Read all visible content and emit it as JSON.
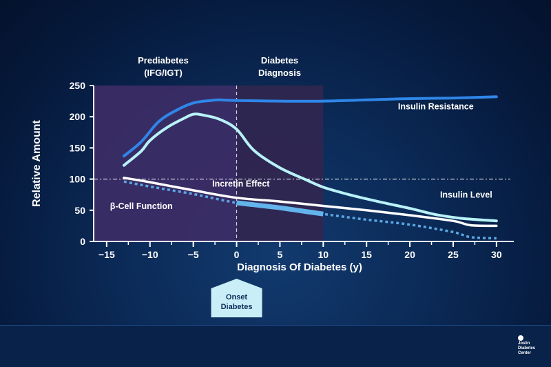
{
  "chart_data": {
    "type": "line",
    "xlabel": "Diagnosis Of Diabetes (y)",
    "ylabel": "Relative Amount",
    "xlim": [
      -16.5,
      32
    ],
    "ylim": [
      0,
      250
    ],
    "x_ticks": [
      -15,
      -10,
      -5,
      0,
      5,
      10,
      15,
      20,
      25,
      30
    ],
    "x_tick_labels": [
      "−15",
      "−10",
      "−5",
      "0",
      "5",
      "10",
      "15",
      "20",
      "25",
      "30"
    ],
    "y_ticks": [
      0,
      50,
      100,
      150,
      200,
      250
    ],
    "y_tick_labels": [
      "0",
      "50",
      "100",
      "150",
      "200",
      "250"
    ],
    "reference_line_y": 100,
    "diagnosis_line_x": 0,
    "regions": [
      {
        "label_lines": [
          "Prediabetes",
          "(IFG/IGT)"
        ],
        "x": [
          -16.5,
          0
        ],
        "color": "#3d2c66"
      },
      {
        "label_lines": [
          "Diabetes",
          "Diagnosis"
        ],
        "x": [
          0,
          10
        ],
        "color": "#31264f"
      }
    ],
    "series": [
      {
        "name": "Insulin Resistance",
        "color": "#2f86e8",
        "style": "solid",
        "x": [
          -13,
          -11,
          -9,
          -7,
          -5,
          -3,
          -2,
          0,
          5,
          10,
          15,
          20,
          25,
          30
        ],
        "y": [
          137,
          160,
          192,
          210,
          222,
          226,
          227,
          226,
          225,
          225,
          227,
          229,
          230,
          232
        ]
      },
      {
        "name": "Incretin Effect",
        "color": "#b8f2f8",
        "style": "solid",
        "x": [
          -13,
          -11,
          -10,
          -8,
          -6,
          -5,
          -4,
          -2,
          0,
          2,
          5,
          8,
          10,
          13,
          16,
          20,
          23,
          26,
          30
        ],
        "y": [
          122,
          145,
          162,
          183,
          198,
          204,
          203,
          196,
          180,
          146,
          118,
          99,
          87,
          75,
          65,
          53,
          43,
          37,
          33
        ]
      },
      {
        "name": "Insulin Level",
        "color": "#ffffff",
        "style": "solid",
        "x": [
          -13,
          -10,
          -5,
          0,
          5,
          10,
          15,
          20,
          25,
          27,
          30
        ],
        "y": [
          102,
          95,
          82,
          70,
          64,
          57,
          50,
          42,
          33,
          26,
          25
        ]
      },
      {
        "name": "β-Cell Function",
        "color": "#5aa7e2",
        "style": "dotted",
        "x": [
          -13,
          -10,
          -5,
          0,
          5,
          10,
          15,
          20,
          25,
          27,
          30
        ],
        "y": [
          96,
          88,
          76,
          62,
          54,
          44,
          35,
          27,
          15,
          7,
          5
        ]
      }
    ],
    "highlight_segment": {
      "series_index": 3,
      "x": [
        0,
        10
      ],
      "color": "#63b3ec"
    },
    "annotations": [
      {
        "text": "Insulin Resistance",
        "x": 23,
        "y": 212,
        "color": "#ffffff"
      },
      {
        "text": "Incretin Effect",
        "x": 0.5,
        "y": 88,
        "color": "#ffffff"
      },
      {
        "text": "Insulin Level",
        "x": 26.5,
        "y": 70,
        "color": "#ffffff"
      },
      {
        "text": "β-Cell Function",
        "x": -11,
        "y": 52,
        "color": "#ffffff"
      }
    ],
    "onset_marker": {
      "lines": [
        "Onset",
        "Diabetes"
      ],
      "x": 0,
      "color": "#c9eef8"
    }
  },
  "logo": {
    "lines": [
      "Joslin",
      "Diabetes",
      "Center"
    ]
  }
}
